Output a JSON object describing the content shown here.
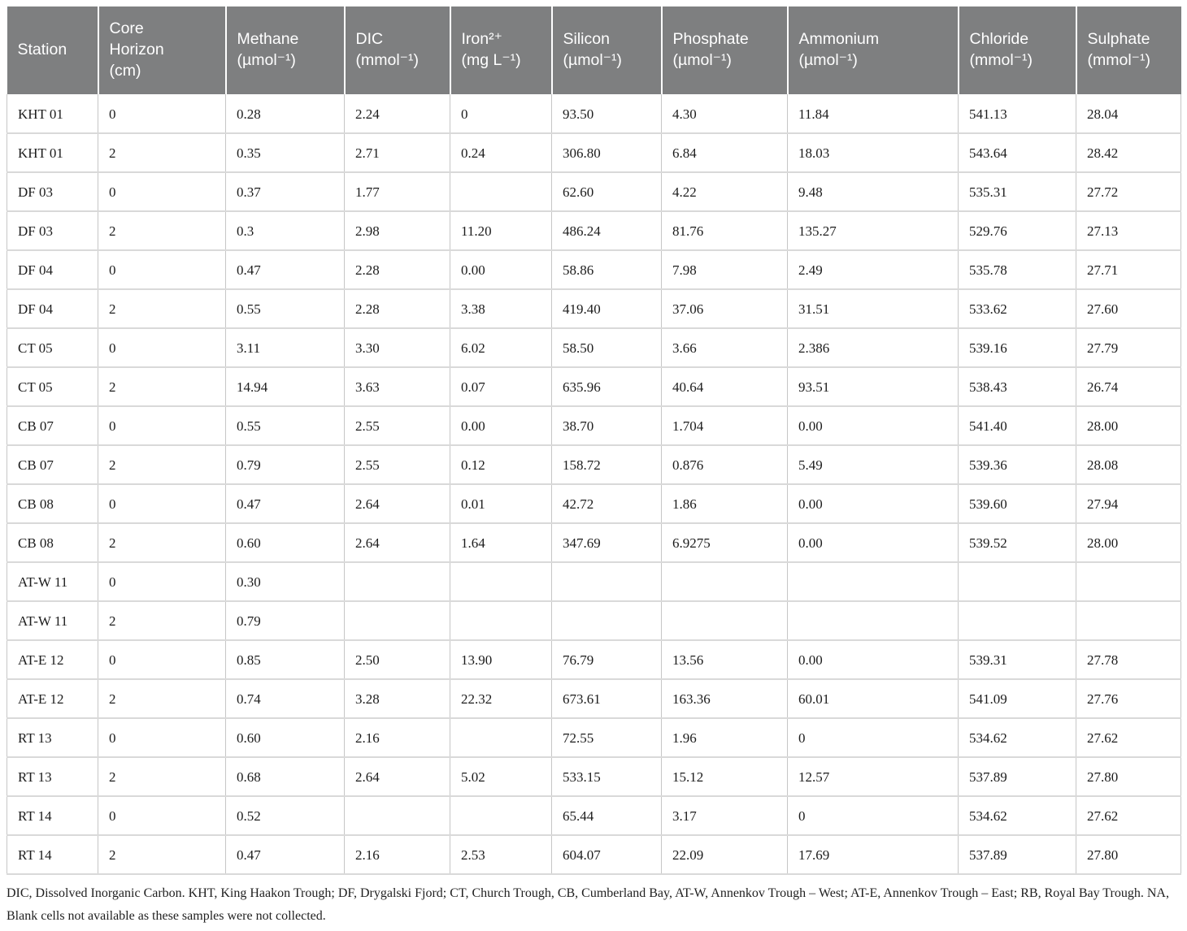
{
  "table": {
    "header": [
      {
        "id": "station",
        "label": "Station"
      },
      {
        "id": "core-horizon",
        "label": "Core\nHorizon\n(cm)"
      },
      {
        "id": "methane",
        "label": "Methane\n(µmol⁻¹)"
      },
      {
        "id": "dic",
        "label": "DIC\n(mmol⁻¹)"
      },
      {
        "id": "iron",
        "label": "Iron²⁺\n(mg L⁻¹)"
      },
      {
        "id": "silicon",
        "label": "Silicon\n(µmol⁻¹)"
      },
      {
        "id": "phosphate",
        "label": "Phosphate\n(µmol⁻¹)"
      },
      {
        "id": "ammonium",
        "label": "Ammonium\n(µmol⁻¹)"
      },
      {
        "id": "chloride",
        "label": "Chloride\n(mmol⁻¹)"
      },
      {
        "id": "sulphate",
        "label": "Sulphate\n(mmol⁻¹)"
      }
    ],
    "rows": [
      [
        "KHT 01",
        "0",
        "0.28",
        "2.24",
        "0",
        "93.50",
        "4.30",
        "11.84",
        "541.13",
        "28.04"
      ],
      [
        "KHT 01",
        "2",
        "0.35",
        "2.71",
        "0.24",
        "306.80",
        "6.84",
        "18.03",
        "543.64",
        "28.42"
      ],
      [
        "DF 03",
        "0",
        "0.37",
        "1.77",
        "",
        "62.60",
        "4.22",
        "9.48",
        "535.31",
        "27.72"
      ],
      [
        "DF 03",
        "2",
        "0.3",
        "2.98",
        "11.20",
        "486.24",
        "81.76",
        "135.27",
        "529.76",
        "27.13"
      ],
      [
        "DF 04",
        "0",
        "0.47",
        "2.28",
        "0.00",
        "58.86",
        "7.98",
        "2.49",
        "535.78",
        "27.71"
      ],
      [
        "DF 04",
        "2",
        "0.55",
        "2.28",
        "3.38",
        "419.40",
        "37.06",
        "31.51",
        "533.62",
        "27.60"
      ],
      [
        "CT 05",
        "0",
        "3.11",
        "3.30",
        "6.02",
        "58.50",
        "3.66",
        "2.386",
        "539.16",
        "27.79"
      ],
      [
        "CT 05",
        "2",
        "14.94",
        "3.63",
        "0.07",
        "635.96",
        "40.64",
        "93.51",
        "538.43",
        "26.74"
      ],
      [
        "CB 07",
        "0",
        "0.55",
        "2.55",
        "0.00",
        "38.70",
        "1.704",
        "0.00",
        "541.40",
        "28.00"
      ],
      [
        "CB 07",
        "2",
        "0.79",
        "2.55",
        "0.12",
        "158.72",
        "0.876",
        "5.49",
        "539.36",
        "28.08"
      ],
      [
        "CB 08",
        "0",
        "0.47",
        "2.64",
        "0.01",
        "42.72",
        "1.86",
        "0.00",
        "539.60",
        "27.94"
      ],
      [
        "CB 08",
        "2",
        "0.60",
        "2.64",
        "1.64",
        "347.69",
        "6.9275",
        "0.00",
        "539.52",
        "28.00"
      ],
      [
        "AT-W 11",
        "0",
        "0.30",
        "",
        "",
        "",
        "",
        "",
        "",
        ""
      ],
      [
        "AT-W 11",
        "2",
        "0.79",
        "",
        "",
        "",
        "",
        "",
        "",
        ""
      ],
      [
        "AT-E 12",
        "0",
        "0.85",
        "2.50",
        "13.90",
        "76.79",
        "13.56",
        "0.00",
        "539.31",
        "27.78"
      ],
      [
        "AT-E 12",
        "2",
        "0.74",
        "3.28",
        "22.32",
        "673.61",
        "163.36",
        "60.01",
        "541.09",
        "27.76"
      ],
      [
        "RT 13",
        "0",
        "0.60",
        "2.16",
        "",
        "72.55",
        "1.96",
        "0",
        "534.62",
        "27.62"
      ],
      [
        "RT 13",
        "2",
        "0.68",
        "2.64",
        "5.02",
        "533.15",
        "15.12",
        "12.57",
        "537.89",
        "27.80"
      ],
      [
        "RT 14",
        "0",
        "0.52",
        "",
        "",
        "65.44",
        "3.17",
        "0",
        "534.62",
        "27.62"
      ],
      [
        "RT 14",
        "2",
        "0.47",
        "2.16",
        "2.53",
        "604.07",
        "22.09",
        "17.69",
        "537.89",
        "27.80"
      ]
    ]
  },
  "footnote": "DIC, Dissolved Inorganic Carbon. KHT, King Haakon Trough; DF, Drygalski Fjord; CT, Church Trough, CB, Cumberland Bay, AT-W, Annenkov Trough – West; AT-E, Annenkov Trough – East; RB, Royal Bay Trough. NA, Blank cells not available as these samples were not collected.",
  "colors": {
    "header_bg": "#7e7f80",
    "header_text": "#ffffff",
    "body_text": "#1c1c1c",
    "border_vertical": "#c6c6c6",
    "border_horizontal": "#d9d9d9",
    "page_bg": "#ffffff"
  }
}
